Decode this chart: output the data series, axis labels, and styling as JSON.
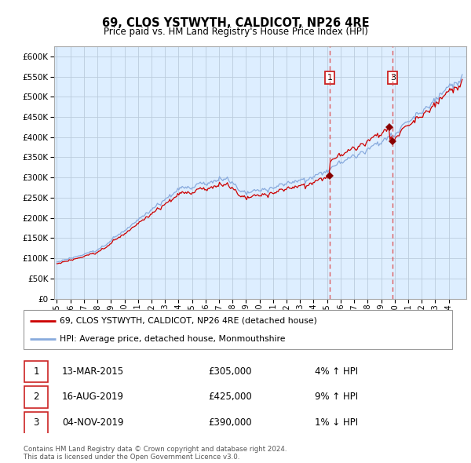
{
  "title": "69, CLOS YSTWYTH, CALDICOT, NP26 4RE",
  "subtitle": "Price paid vs. HM Land Registry's House Price Index (HPI)",
  "background_color": "#ffffff",
  "plot_bg_color": "#ddeeff",
  "grid_color": "#bbccdd",
  "hpi_line_color": "#88aadd",
  "price_line_color": "#cc0000",
  "vline_color": "#dd4444",
  "transactions": [
    {
      "num": 1,
      "date_label": "13-MAR-2015",
      "price": 305000,
      "pct": "4%",
      "dir": "↑",
      "x_year": 2015.2
    },
    {
      "num": 2,
      "date_label": "16-AUG-2019",
      "price": 425000,
      "pct": "9%",
      "dir": "↑",
      "x_year": 2019.62
    },
    {
      "num": 3,
      "date_label": "04-NOV-2019",
      "price": 390000,
      "pct": "1%",
      "dir": "↓",
      "x_year": 2019.85
    }
  ],
  "legend_label_red": "69, CLOS YSTWYTH, CALDICOT, NP26 4RE (detached house)",
  "legend_label_blue": "HPI: Average price, detached house, Monmouthshire",
  "footer": "Contains HM Land Registry data © Crown copyright and database right 2024.\nThis data is licensed under the Open Government Licence v3.0.",
  "ylim": [
    0,
    625000
  ],
  "yticks": [
    0,
    50000,
    100000,
    150000,
    200000,
    250000,
    300000,
    350000,
    400000,
    450000,
    500000,
    550000,
    600000
  ],
  "xlim_start": 1994.8,
  "xlim_end": 2025.3,
  "xticks": [
    1995,
    1996,
    1997,
    1998,
    1999,
    2000,
    2001,
    2002,
    2003,
    2004,
    2005,
    2006,
    2007,
    2008,
    2009,
    2010,
    2011,
    2012,
    2013,
    2014,
    2015,
    2016,
    2017,
    2018,
    2019,
    2020,
    2021,
    2022,
    2023,
    2024
  ]
}
